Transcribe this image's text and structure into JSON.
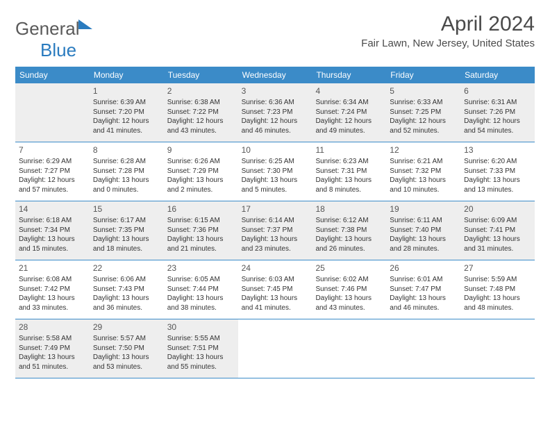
{
  "logo": {
    "general": "General",
    "blue": "Blue"
  },
  "title": "April 2024",
  "location": "Fair Lawn, New Jersey, United States",
  "colors": {
    "headerBg": "#3b8bc8",
    "headerText": "#ffffff",
    "shaded": "#eeeeee",
    "border": "#3b8bc8",
    "titleColor": "#4a4a4a"
  },
  "dayNames": [
    "Sunday",
    "Monday",
    "Tuesday",
    "Wednesday",
    "Thursday",
    "Friday",
    "Saturday"
  ],
  "weeks": [
    [
      {
        "day": "",
        "shaded": true
      },
      {
        "day": "1",
        "shaded": true,
        "sunrise": "Sunrise: 6:39 AM",
        "sunset": "Sunset: 7:20 PM",
        "daylight": "Daylight: 12 hours and 41 minutes."
      },
      {
        "day": "2",
        "shaded": true,
        "sunrise": "Sunrise: 6:38 AM",
        "sunset": "Sunset: 7:22 PM",
        "daylight": "Daylight: 12 hours and 43 minutes."
      },
      {
        "day": "3",
        "shaded": true,
        "sunrise": "Sunrise: 6:36 AM",
        "sunset": "Sunset: 7:23 PM",
        "daylight": "Daylight: 12 hours and 46 minutes."
      },
      {
        "day": "4",
        "shaded": true,
        "sunrise": "Sunrise: 6:34 AM",
        "sunset": "Sunset: 7:24 PM",
        "daylight": "Daylight: 12 hours and 49 minutes."
      },
      {
        "day": "5",
        "shaded": true,
        "sunrise": "Sunrise: 6:33 AM",
        "sunset": "Sunset: 7:25 PM",
        "daylight": "Daylight: 12 hours and 52 minutes."
      },
      {
        "day": "6",
        "shaded": true,
        "sunrise": "Sunrise: 6:31 AM",
        "sunset": "Sunset: 7:26 PM",
        "daylight": "Daylight: 12 hours and 54 minutes."
      }
    ],
    [
      {
        "day": "7",
        "sunrise": "Sunrise: 6:29 AM",
        "sunset": "Sunset: 7:27 PM",
        "daylight": "Daylight: 12 hours and 57 minutes."
      },
      {
        "day": "8",
        "sunrise": "Sunrise: 6:28 AM",
        "sunset": "Sunset: 7:28 PM",
        "daylight": "Daylight: 13 hours and 0 minutes."
      },
      {
        "day": "9",
        "sunrise": "Sunrise: 6:26 AM",
        "sunset": "Sunset: 7:29 PM",
        "daylight": "Daylight: 13 hours and 2 minutes."
      },
      {
        "day": "10",
        "sunrise": "Sunrise: 6:25 AM",
        "sunset": "Sunset: 7:30 PM",
        "daylight": "Daylight: 13 hours and 5 minutes."
      },
      {
        "day": "11",
        "sunrise": "Sunrise: 6:23 AM",
        "sunset": "Sunset: 7:31 PM",
        "daylight": "Daylight: 13 hours and 8 minutes."
      },
      {
        "day": "12",
        "sunrise": "Sunrise: 6:21 AM",
        "sunset": "Sunset: 7:32 PM",
        "daylight": "Daylight: 13 hours and 10 minutes."
      },
      {
        "day": "13",
        "sunrise": "Sunrise: 6:20 AM",
        "sunset": "Sunset: 7:33 PM",
        "daylight": "Daylight: 13 hours and 13 minutes."
      }
    ],
    [
      {
        "day": "14",
        "shaded": true,
        "sunrise": "Sunrise: 6:18 AM",
        "sunset": "Sunset: 7:34 PM",
        "daylight": "Daylight: 13 hours and 15 minutes."
      },
      {
        "day": "15",
        "shaded": true,
        "sunrise": "Sunrise: 6:17 AM",
        "sunset": "Sunset: 7:35 PM",
        "daylight": "Daylight: 13 hours and 18 minutes."
      },
      {
        "day": "16",
        "shaded": true,
        "sunrise": "Sunrise: 6:15 AM",
        "sunset": "Sunset: 7:36 PM",
        "daylight": "Daylight: 13 hours and 21 minutes."
      },
      {
        "day": "17",
        "shaded": true,
        "sunrise": "Sunrise: 6:14 AM",
        "sunset": "Sunset: 7:37 PM",
        "daylight": "Daylight: 13 hours and 23 minutes."
      },
      {
        "day": "18",
        "shaded": true,
        "sunrise": "Sunrise: 6:12 AM",
        "sunset": "Sunset: 7:38 PM",
        "daylight": "Daylight: 13 hours and 26 minutes."
      },
      {
        "day": "19",
        "shaded": true,
        "sunrise": "Sunrise: 6:11 AM",
        "sunset": "Sunset: 7:40 PM",
        "daylight": "Daylight: 13 hours and 28 minutes."
      },
      {
        "day": "20",
        "shaded": true,
        "sunrise": "Sunrise: 6:09 AM",
        "sunset": "Sunset: 7:41 PM",
        "daylight": "Daylight: 13 hours and 31 minutes."
      }
    ],
    [
      {
        "day": "21",
        "sunrise": "Sunrise: 6:08 AM",
        "sunset": "Sunset: 7:42 PM",
        "daylight": "Daylight: 13 hours and 33 minutes."
      },
      {
        "day": "22",
        "sunrise": "Sunrise: 6:06 AM",
        "sunset": "Sunset: 7:43 PM",
        "daylight": "Daylight: 13 hours and 36 minutes."
      },
      {
        "day": "23",
        "sunrise": "Sunrise: 6:05 AM",
        "sunset": "Sunset: 7:44 PM",
        "daylight": "Daylight: 13 hours and 38 minutes."
      },
      {
        "day": "24",
        "sunrise": "Sunrise: 6:03 AM",
        "sunset": "Sunset: 7:45 PM",
        "daylight": "Daylight: 13 hours and 41 minutes."
      },
      {
        "day": "25",
        "sunrise": "Sunrise: 6:02 AM",
        "sunset": "Sunset: 7:46 PM",
        "daylight": "Daylight: 13 hours and 43 minutes."
      },
      {
        "day": "26",
        "sunrise": "Sunrise: 6:01 AM",
        "sunset": "Sunset: 7:47 PM",
        "daylight": "Daylight: 13 hours and 46 minutes."
      },
      {
        "day": "27",
        "sunrise": "Sunrise: 5:59 AM",
        "sunset": "Sunset: 7:48 PM",
        "daylight": "Daylight: 13 hours and 48 minutes."
      }
    ],
    [
      {
        "day": "28",
        "shaded": true,
        "sunrise": "Sunrise: 5:58 AM",
        "sunset": "Sunset: 7:49 PM",
        "daylight": "Daylight: 13 hours and 51 minutes."
      },
      {
        "day": "29",
        "shaded": true,
        "sunrise": "Sunrise: 5:57 AM",
        "sunset": "Sunset: 7:50 PM",
        "daylight": "Daylight: 13 hours and 53 minutes."
      },
      {
        "day": "30",
        "shaded": true,
        "sunrise": "Sunrise: 5:55 AM",
        "sunset": "Sunset: 7:51 PM",
        "daylight": "Daylight: 13 hours and 55 minutes."
      },
      {
        "day": ""
      },
      {
        "day": ""
      },
      {
        "day": ""
      },
      {
        "day": ""
      }
    ]
  ]
}
